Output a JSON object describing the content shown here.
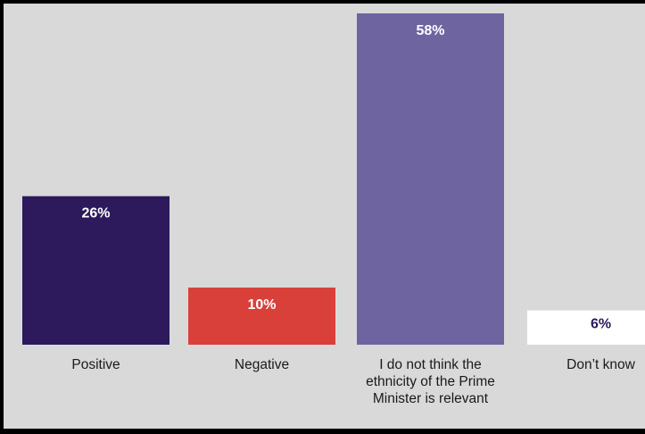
{
  "chart_data": {
    "type": "bar",
    "categories": [
      [
        "Positive"
      ],
      [
        "Negative"
      ],
      [
        "I do not think the",
        "ethnicity of the Prime",
        "Minister is relevant"
      ],
      [
        "Don’t know"
      ]
    ],
    "values": [
      26,
      10,
      58,
      6
    ],
    "value_labels": [
      "26%",
      "10%",
      "58%",
      "6%"
    ],
    "colors": [
      "#2c1a5c",
      "#d9403a",
      "#6e64a0",
      "#ffffff"
    ],
    "label_colors": [
      "#ffffff",
      "#ffffff",
      "#ffffff",
      "#2c1a5c"
    ],
    "ylim": [
      0,
      58
    ],
    "grid": false,
    "legend": false,
    "title": "",
    "xlabel": "",
    "ylabel": ""
  }
}
